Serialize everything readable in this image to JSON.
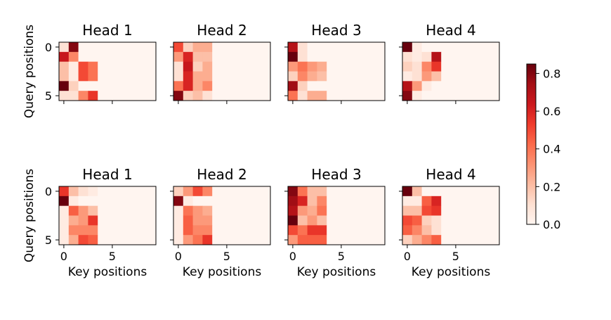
{
  "chart_data": {
    "type": "heatmap",
    "xlabel": "Key positions",
    "ylabel": "Query positions",
    "x_ticks": [
      0,
      5
    ],
    "y_ticks": [
      0,
      5
    ],
    "n_keys": 10,
    "n_queries": 6,
    "colormap": "Reds",
    "colorbar": {
      "min": 0.0,
      "max": 0.85,
      "ticks": [
        "0.0",
        "0.2",
        "0.4",
        "0.6",
        "0.8"
      ]
    },
    "rows": [
      {
        "panels": [
          {
            "title": "Head 1",
            "values": [
              [
                0.1,
                0.8,
                0,
                0,
                0,
                0,
                0,
                0,
                0,
                0
              ],
              [
                0.65,
                0.35,
                0,
                0,
                0,
                0,
                0,
                0,
                0,
                0
              ],
              [
                0.2,
                0.05,
                0.5,
                0.4,
                0,
                0,
                0,
                0,
                0,
                0
              ],
              [
                0.2,
                0.05,
                0.5,
                0.4,
                0,
                0,
                0,
                0,
                0,
                0
              ],
              [
                0.85,
                0.15,
                0,
                0,
                0,
                0,
                0,
                0,
                0,
                0
              ],
              [
                0.1,
                0.1,
                0.35,
                0.55,
                0,
                0,
                0,
                0,
                0,
                0
              ]
            ]
          },
          {
            "title": "Head 2",
            "values": [
              [
                0.5,
                0.15,
                0.25,
                0.25,
                0,
                0,
                0,
                0,
                0,
                0
              ],
              [
                0.3,
                0.6,
                0.2,
                0.2,
                0,
                0,
                0,
                0,
                0,
                0
              ],
              [
                0.1,
                0.65,
                0.15,
                0.25,
                0,
                0,
                0,
                0,
                0,
                0
              ],
              [
                0.1,
                0.6,
                0.25,
                0.25,
                0,
                0,
                0,
                0,
                0,
                0
              ],
              [
                0.4,
                0.6,
                0.25,
                0.35,
                0,
                0,
                0,
                0,
                0,
                0
              ],
              [
                0.8,
                0.15,
                0.2,
                0.1,
                0,
                0,
                0,
                0,
                0,
                0
              ]
            ]
          },
          {
            "title": "Head 3",
            "values": [
              [
                0.7,
                0.1,
                0,
                0,
                0,
                0,
                0,
                0,
                0,
                0
              ],
              [
                0.85,
                0.1,
                0,
                0,
                0,
                0,
                0,
                0,
                0,
                0
              ],
              [
                0.3,
                0.4,
                0.3,
                0.25,
                0,
                0,
                0,
                0,
                0,
                0
              ],
              [
                0.15,
                0.35,
                0.25,
                0.2,
                0,
                0,
                0,
                0,
                0,
                0
              ],
              [
                0.75,
                0.15,
                0,
                0,
                0,
                0,
                0,
                0,
                0,
                0
              ],
              [
                0.4,
                0.1,
                0.25,
                0.25,
                0,
                0,
                0,
                0,
                0,
                0
              ]
            ]
          },
          {
            "title": "Head 4",
            "values": [
              [
                0.85,
                0.05,
                0,
                0,
                0,
                0,
                0,
                0,
                0,
                0
              ],
              [
                0.1,
                0.05,
                0.1,
                0.7,
                0,
                0,
                0,
                0,
                0,
                0
              ],
              [
                0.15,
                0.1,
                0.35,
                0.55,
                0,
                0,
                0,
                0,
                0,
                0
              ],
              [
                0.05,
                0.1,
                0.3,
                0.2,
                0,
                0,
                0,
                0,
                0,
                0
              ],
              [
                0.7,
                0.3,
                0.05,
                0,
                0,
                0,
                0,
                0,
                0,
                0
              ],
              [
                0.8,
                0.05,
                0,
                0,
                0,
                0,
                0,
                0,
                0,
                0
              ]
            ]
          }
        ]
      },
      {
        "panels": [
          {
            "title": "Head 1",
            "values": [
              [
                0.55,
                0.2,
                0.1,
                0.05,
                0,
                0,
                0,
                0,
                0,
                0
              ],
              [
                0.85,
                0.05,
                0,
                0,
                0,
                0,
                0,
                0,
                0,
                0
              ],
              [
                0.05,
                0.45,
                0.3,
                0.2,
                0,
                0,
                0,
                0,
                0,
                0
              ],
              [
                0.05,
                0.25,
                0.3,
                0.55,
                0,
                0,
                0,
                0,
                0,
                0
              ],
              [
                0.05,
                0.35,
                0.35,
                0.35,
                0,
                0,
                0,
                0,
                0,
                0
              ],
              [
                0.05,
                0.25,
                0.5,
                0.45,
                0,
                0,
                0,
                0,
                0,
                0
              ]
            ]
          },
          {
            "title": "Head 2",
            "values": [
              [
                0.15,
                0.3,
                0.5,
                0.35,
                0,
                0,
                0,
                0,
                0,
                0
              ],
              [
                0.8,
                0.05,
                0,
                0,
                0,
                0,
                0,
                0,
                0,
                0
              ],
              [
                0.05,
                0.4,
                0.3,
                0.25,
                0,
                0,
                0,
                0,
                0,
                0
              ],
              [
                0.05,
                0.45,
                0.3,
                0.3,
                0,
                0,
                0,
                0,
                0,
                0
              ],
              [
                0.05,
                0.45,
                0.35,
                0.35,
                0,
                0,
                0,
                0,
                0,
                0
              ],
              [
                0.05,
                0.3,
                0.4,
                0.55,
                0,
                0,
                0,
                0,
                0,
                0
              ]
            ]
          },
          {
            "title": "Head 3",
            "values": [
              [
                0.8,
                0.4,
                0.2,
                0.2,
                0,
                0,
                0,
                0,
                0,
                0
              ],
              [
                0.75,
                0.6,
                0.2,
                0.35,
                0,
                0,
                0,
                0,
                0,
                0
              ],
              [
                0.7,
                0.3,
                0.25,
                0.4,
                0,
                0,
                0,
                0,
                0,
                0
              ],
              [
                0.85,
                0.2,
                0.3,
                0.2,
                0,
                0,
                0,
                0,
                0,
                0
              ],
              [
                0.5,
                0.4,
                0.55,
                0.55,
                0,
                0,
                0,
                0,
                0,
                0
              ],
              [
                0.3,
                0.45,
                0.45,
                0.45,
                0,
                0,
                0,
                0,
                0,
                0
              ]
            ]
          },
          {
            "title": "Head 4",
            "values": [
              [
                0.85,
                0.2,
                0,
                0,
                0,
                0,
                0,
                0,
                0,
                0
              ],
              [
                0.05,
                0.05,
                0.45,
                0.6,
                0,
                0,
                0,
                0,
                0,
                0
              ],
              [
                0.2,
                0.2,
                0.5,
                0.55,
                0,
                0,
                0,
                0,
                0,
                0
              ],
              [
                0.5,
                0.45,
                0.15,
                0.1,
                0,
                0,
                0,
                0,
                0,
                0
              ],
              [
                0.45,
                0.35,
                0.2,
                0.1,
                0,
                0,
                0,
                0,
                0,
                0
              ],
              [
                0.15,
                0.25,
                0.35,
                0.45,
                0,
                0,
                0,
                0,
                0,
                0
              ]
            ]
          }
        ]
      }
    ]
  }
}
